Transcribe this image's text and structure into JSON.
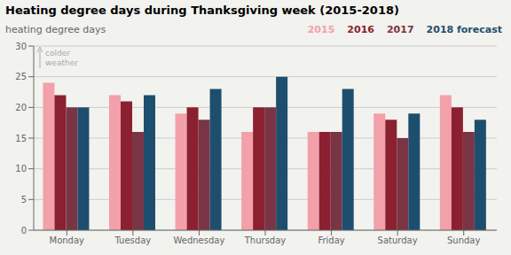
{
  "chart_data": {
    "type": "bar",
    "title": "Heating degree days during Thanksgiving week (2015-2018)",
    "ylabel": "heating degree days",
    "annotation": "colder\nweather",
    "categories": [
      "Monday",
      "Tuesday",
      "Wednesday",
      "Thursday",
      "Friday",
      "Saturday",
      "Sunday"
    ],
    "series": [
      {
        "name": "2015",
        "color": "#f2a0aa",
        "values": [
          24,
          22,
          19,
          16,
          16,
          19,
          22
        ]
      },
      {
        "name": "2016",
        "color": "#8b2030",
        "values": [
          22,
          21,
          20,
          20,
          16,
          18,
          20
        ]
      },
      {
        "name": "2017",
        "color": "#7a3545",
        "values": [
          20,
          16,
          18,
          20,
          16,
          15,
          16
        ]
      },
      {
        "name": "2018 forecast",
        "color": "#1e4e6e",
        "values": [
          20,
          22,
          23,
          25,
          23,
          19,
          18
        ]
      }
    ],
    "ylim": [
      0,
      30
    ],
    "yticks": [
      0,
      5,
      10,
      15,
      20,
      25,
      30
    ],
    "grid": true,
    "legend": "upper right"
  }
}
